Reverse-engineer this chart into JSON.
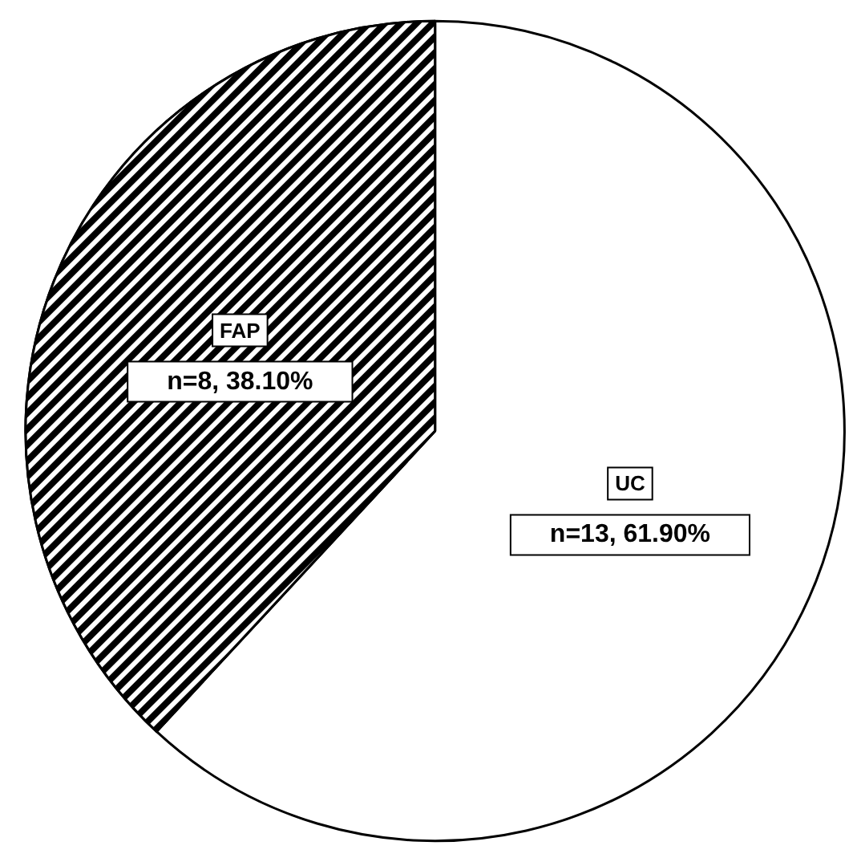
{
  "chart_data": {
    "type": "pie",
    "categories": [
      "UC",
      "FAP"
    ],
    "values": [
      13,
      8
    ],
    "colors": [
      "#ffffff",
      "#000000"
    ],
    "value_labels": [
      "n=13, 61.90%",
      "n=8, 38.10%"
    ],
    "legend": false
  }
}
